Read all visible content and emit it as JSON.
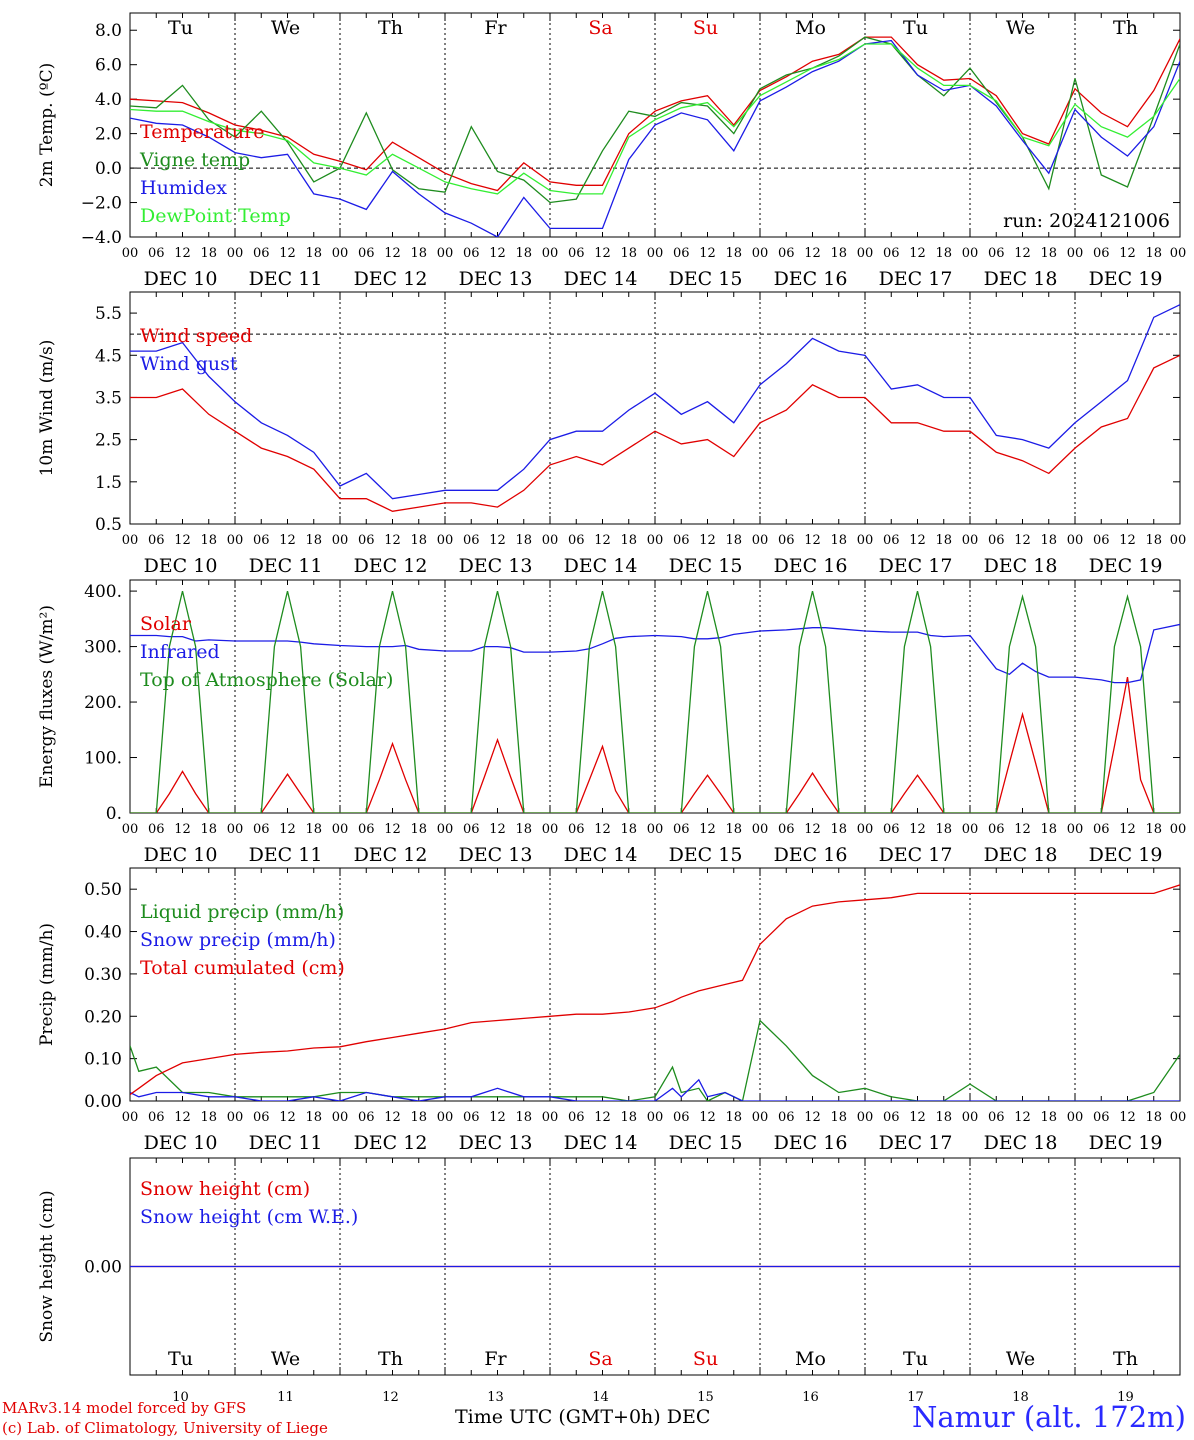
{
  "colors": {
    "red": "#e00000",
    "green": "#1e8c1e",
    "blue": "#1c1ce6",
    "lightgreen": "#33ee33",
    "weekend": "#e00000",
    "station": "#2a2aff"
  },
  "time_axis": {
    "hour_ticks": [
      "00",
      "06",
      "12",
      "18"
    ],
    "end_tick": "00",
    "dates": [
      "DEC 10",
      "DEC 11",
      "DEC 12",
      "DEC 13",
      "DEC 14",
      "DEC 15",
      "DEC 16",
      "DEC 17",
      "DEC 18",
      "DEC 19"
    ],
    "weekdays": [
      "Tu",
      "We",
      "Th",
      "Fr",
      "Sa",
      "Su",
      "Mo",
      "Tu",
      "We",
      "Th"
    ],
    "weekend_flags": [
      false,
      false,
      false,
      false,
      true,
      true,
      false,
      false,
      false,
      false
    ],
    "day_numbers": [
      "10",
      "11",
      "12",
      "13",
      "14",
      "15",
      "16",
      "17",
      "18",
      "19"
    ],
    "xlabel": "Time UTC (GMT+0h)",
    "month": "DEC"
  },
  "footer": {
    "credit_line1": "MARv3.14 model forced by GFS",
    "credit_line2": "(c) Lab. of Climatology, University of Liege",
    "station": "Namur (alt. 172m)"
  },
  "chart_data": [
    {
      "type": "line",
      "ylabel": "2m Temp. (ºC)",
      "ylim": [
        -4,
        9
      ],
      "yticks": [
        -4,
        -2,
        0,
        2,
        4,
        6,
        8
      ],
      "ytick_labels": [
        "−4.0",
        "−2.0",
        "0.0",
        "2.0",
        "4.0",
        "6.0",
        "8.0"
      ],
      "ref_line": 0,
      "annotation": "run: 2024121006",
      "x_hours": [
        0,
        6,
        12,
        18,
        24,
        30,
        36,
        42,
        48,
        54,
        60,
        66,
        72,
        78,
        84,
        90,
        96,
        102,
        108,
        114,
        120,
        126,
        132,
        138,
        144,
        150,
        156,
        162,
        168,
        174,
        180,
        186,
        192,
        198,
        204,
        210,
        216,
        222,
        228,
        234,
        240
      ],
      "series": [
        {
          "name": "Temperature",
          "color": "red",
          "values": [
            4.0,
            3.9,
            3.8,
            3.2,
            2.5,
            2.2,
            1.8,
            0.8,
            0.4,
            -0.1,
            1.5,
            0.6,
            -0.3,
            -0.9,
            -1.3,
            0.3,
            -0.8,
            -1.0,
            -1.0,
            2.0,
            3.3,
            3.9,
            4.2,
            2.5,
            4.5,
            5.3,
            6.2,
            6.6,
            7.6,
            7.6,
            6.0,
            5.1,
            5.2,
            4.2,
            2.0,
            1.4,
            4.6,
            3.2,
            2.4,
            4.5,
            7.5
          ]
        },
        {
          "name": "Vigne temp",
          "color": "green",
          "values": [
            3.6,
            3.5,
            4.8,
            2.8,
            1.8,
            3.3,
            1.5,
            -0.8,
            0.0,
            3.2,
            -0.1,
            -1.2,
            -1.4,
            2.4,
            -0.2,
            -0.7,
            -2.0,
            -1.8,
            1.0,
            3.3,
            3.0,
            3.8,
            3.6,
            2.0,
            4.6,
            5.4,
            5.8,
            6.5,
            7.6,
            7.2,
            5.4,
            4.2,
            5.8,
            3.8,
            1.8,
            -1.2,
            5.2,
            -0.4,
            -1.1,
            3.0,
            7.2
          ]
        },
        {
          "name": "Humidex",
          "color": "blue",
          "values": [
            2.9,
            2.6,
            2.5,
            1.8,
            0.9,
            0.6,
            0.8,
            -1.5,
            -1.8,
            -2.4,
            -0.2,
            -1.5,
            -2.6,
            -3.2,
            -4.0,
            -1.7,
            -3.5,
            -3.5,
            -3.5,
            0.5,
            2.5,
            3.2,
            2.8,
            1.0,
            3.9,
            4.7,
            5.6,
            6.2,
            7.2,
            7.4,
            5.4,
            4.5,
            4.8,
            3.6,
            1.6,
            -0.3,
            3.4,
            1.8,
            0.7,
            2.4,
            6.2
          ]
        },
        {
          "name": "DewPoint Temp",
          "color": "lightgreen",
          "values": [
            3.4,
            3.3,
            3.3,
            2.7,
            2.2,
            2.0,
            1.6,
            0.3,
            0.0,
            -0.4,
            0.8,
            0.0,
            -0.8,
            -1.2,
            -1.5,
            -0.3,
            -1.3,
            -1.5,
            -1.5,
            1.8,
            2.8,
            3.5,
            3.8,
            2.4,
            4.2,
            5.0,
            5.8,
            6.3,
            7.2,
            7.2,
            5.8,
            4.8,
            4.8,
            3.9,
            1.8,
            1.3,
            3.7,
            2.4,
            1.8,
            3.0,
            5.2
          ]
        }
      ]
    },
    {
      "type": "line",
      "ylabel": "10m Wind (m/s)",
      "ylim": [
        0.5,
        6.0
      ],
      "yticks": [
        0.5,
        1.5,
        2.5,
        3.5,
        4.5,
        5.5
      ],
      "ytick_labels": [
        "0.5",
        "1.5",
        "2.5",
        "3.5",
        "4.5",
        "5.5"
      ],
      "ref_line": 5.0,
      "x_hours": [
        0,
        6,
        12,
        18,
        24,
        30,
        36,
        42,
        48,
        54,
        60,
        66,
        72,
        78,
        84,
        90,
        96,
        102,
        108,
        114,
        120,
        126,
        132,
        138,
        144,
        150,
        156,
        162,
        168,
        174,
        180,
        186,
        192,
        198,
        204,
        210,
        216,
        222,
        228,
        234,
        240
      ],
      "series": [
        {
          "name": "Wind speed",
          "color": "red",
          "values": [
            3.5,
            3.5,
            3.7,
            3.1,
            2.7,
            2.3,
            2.1,
            1.8,
            1.1,
            1.1,
            0.8,
            0.9,
            1.0,
            1.0,
            0.9,
            1.3,
            1.9,
            2.1,
            1.9,
            2.3,
            2.7,
            2.4,
            2.5,
            2.1,
            2.9,
            3.2,
            3.8,
            3.5,
            3.5,
            2.9,
            2.9,
            2.7,
            2.7,
            2.2,
            2.0,
            1.7,
            2.3,
            2.8,
            3.0,
            4.2,
            4.5
          ]
        },
        {
          "name": "Wind gust",
          "color": "blue",
          "values": [
            4.6,
            4.6,
            4.8,
            4.0,
            3.4,
            2.9,
            2.6,
            2.2,
            1.4,
            1.7,
            1.1,
            1.2,
            1.3,
            1.3,
            1.3,
            1.8,
            2.5,
            2.7,
            2.7,
            3.2,
            3.6,
            3.1,
            3.4,
            2.9,
            3.8,
            4.3,
            4.9,
            4.6,
            4.5,
            3.7,
            3.8,
            3.5,
            3.5,
            2.6,
            2.5,
            2.3,
            2.9,
            3.4,
            3.9,
            5.4,
            5.7
          ]
        }
      ]
    },
    {
      "type": "line",
      "ylabel": "Energy fluxes (W/m²)",
      "ylim": [
        0,
        420
      ],
      "yticks": [
        0,
        100,
        200,
        300,
        400
      ],
      "ytick_labels": [
        "0.",
        "100.",
        "200.",
        "300.",
        "400."
      ],
      "x_hours": [
        0,
        6,
        9,
        12,
        15,
        18,
        24,
        30,
        33,
        36,
        39,
        42,
        48,
        54,
        57,
        60,
        63,
        66,
        72,
        78,
        81,
        84,
        87,
        90,
        96,
        102,
        105,
        108,
        111,
        114,
        120,
        126,
        129,
        132,
        135,
        138,
        144,
        150,
        153,
        156,
        159,
        162,
        168,
        174,
        177,
        180,
        183,
        186,
        192,
        198,
        201,
        204,
        207,
        210,
        216,
        222,
        225,
        228,
        231,
        234,
        240
      ],
      "series": [
        {
          "name": "Solar",
          "color": "red",
          "values": [
            0,
            0,
            35,
            75,
            35,
            0,
            0,
            0,
            35,
            70,
            35,
            0,
            0,
            0,
            60,
            125,
            60,
            0,
            0,
            0,
            65,
            132,
            65,
            0,
            0,
            0,
            60,
            120,
            40,
            0,
            0,
            0,
            35,
            68,
            35,
            0,
            0,
            0,
            35,
            72,
            35,
            0,
            0,
            0,
            35,
            68,
            35,
            0,
            0,
            0,
            90,
            178,
            90,
            0,
            0,
            0,
            120,
            245,
            60,
            0,
            0
          ]
        },
        {
          "name": "Infrared",
          "color": "blue",
          "values": [
            320,
            320,
            318,
            318,
            310,
            312,
            310,
            310,
            310,
            310,
            308,
            305,
            302,
            300,
            300,
            300,
            302,
            295,
            292,
            292,
            300,
            300,
            298,
            290,
            290,
            292,
            296,
            305,
            315,
            318,
            320,
            318,
            314,
            314,
            316,
            322,
            328,
            330,
            332,
            334,
            334,
            332,
            328,
            326,
            326,
            326,
            320,
            318,
            320,
            260,
            250,
            270,
            255,
            245,
            245,
            240,
            235,
            235,
            240,
            330,
            340
          ]
        },
        {
          "name": "Top of Atmosphere (Solar)",
          "color": "green",
          "values": [
            0,
            0,
            300,
            400,
            300,
            0,
            0,
            0,
            300,
            400,
            300,
            0,
            0,
            0,
            300,
            400,
            300,
            0,
            0,
            0,
            300,
            400,
            300,
            0,
            0,
            0,
            300,
            400,
            300,
            0,
            0,
            0,
            300,
            400,
            300,
            0,
            0,
            0,
            300,
            400,
            300,
            0,
            0,
            0,
            300,
            400,
            300,
            0,
            0,
            0,
            300,
            390,
            300,
            0,
            0,
            0,
            300,
            390,
            300,
            0,
            0
          ]
        }
      ]
    },
    {
      "type": "line",
      "ylabel": "Precip (mm/h)",
      "ylim": [
        0,
        0.55
      ],
      "yticks": [
        0,
        0.1,
        0.2,
        0.3,
        0.4,
        0.5
      ],
      "ytick_labels": [
        "0.00",
        "0.10",
        "0.20",
        "0.30",
        "0.40",
        "0.50"
      ],
      "x_hours": [
        0,
        2,
        6,
        12,
        18,
        24,
        30,
        36,
        42,
        48,
        54,
        60,
        66,
        72,
        78,
        84,
        90,
        96,
        102,
        108,
        114,
        120,
        124,
        126,
        130,
        132,
        136,
        140,
        144,
        150,
        156,
        162,
        168,
        174,
        180,
        186,
        192,
        198,
        204,
        210,
        216,
        222,
        228,
        234,
        240
      ],
      "series": [
        {
          "name": "Liquid precip (mm/h)",
          "color": "green",
          "values": [
            0.13,
            0.07,
            0.08,
            0.02,
            0.02,
            0.01,
            0.01,
            0.01,
            0.01,
            0.02,
            0.02,
            0.01,
            0.01,
            0.01,
            0.01,
            0.01,
            0.01,
            0.01,
            0.01,
            0.01,
            0.0,
            0.01,
            0.08,
            0.02,
            0.03,
            0.0,
            0.02,
            0.0,
            0.19,
            0.13,
            0.06,
            0.02,
            0.03,
            0.01,
            0.0,
            0.0,
            0.04,
            0.0,
            0.0,
            0.0,
            0.0,
            0.0,
            0.0,
            0.02,
            0.11
          ]
        },
        {
          "name": "Snow precip (mm/h)",
          "color": "blue",
          "values": [
            0.02,
            0.01,
            0.02,
            0.02,
            0.01,
            0.01,
            0.0,
            0.0,
            0.01,
            0.0,
            0.02,
            0.01,
            0.0,
            0.01,
            0.01,
            0.03,
            0.01,
            0.01,
            0.0,
            0.0,
            0.0,
            0.0,
            0.03,
            0.01,
            0.05,
            0.01,
            0.02,
            0.0,
            0.0,
            0.0,
            0.0,
            0.0,
            0.0,
            0.0,
            0.0,
            0.0,
            0.0,
            0.0,
            0.0,
            0.0,
            0.0,
            0.0,
            0.0,
            0.0,
            0.0
          ]
        },
        {
          "name": "Total cumulated (cm)",
          "color": "red",
          "values": [
            0.015,
            0.03,
            0.06,
            0.09,
            0.1,
            0.11,
            0.115,
            0.118,
            0.125,
            0.128,
            0.14,
            0.15,
            0.16,
            0.17,
            0.185,
            0.19,
            0.195,
            0.2,
            0.205,
            0.205,
            0.21,
            0.22,
            0.235,
            0.245,
            0.26,
            0.265,
            0.275,
            0.285,
            0.37,
            0.43,
            0.46,
            0.47,
            0.475,
            0.48,
            0.49,
            0.49,
            0.49,
            0.49,
            0.49,
            0.49,
            0.49,
            0.49,
            0.49,
            0.49,
            0.51
          ]
        }
      ]
    },
    {
      "type": "line",
      "ylabel": "Snow height (cm)",
      "ylim": [
        -1,
        1
      ],
      "yticks": [
        0
      ],
      "ytick_labels": [
        "0.00"
      ],
      "x_hours": [
        0,
        240
      ],
      "series": [
        {
          "name": "Snow height (cm)",
          "color": "red",
          "values": [
            0,
            0
          ]
        },
        {
          "name": "Snow height (cm W.E.)",
          "color": "blue",
          "values": [
            0,
            0
          ]
        }
      ]
    }
  ]
}
